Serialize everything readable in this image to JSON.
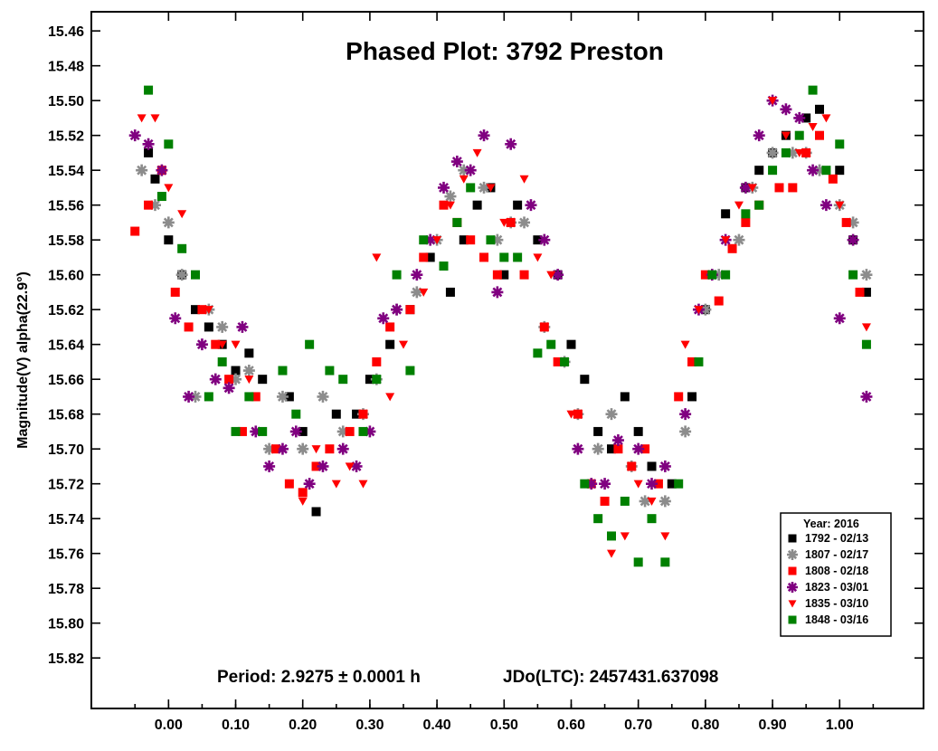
{
  "chart_data": {
    "type": "scatter",
    "title": "Phased Plot: 3792 Preston",
    "xlabel": "",
    "ylabel": "Magnitude(V) alpha(22.9°)",
    "xlim": [
      -0.115,
      1.125
    ],
    "ylim": [
      15.449,
      15.849
    ],
    "y_inverted": true,
    "x_ticks": [
      0.0,
      0.1,
      0.2,
      0.3,
      0.4,
      0.5,
      0.6,
      0.7,
      0.8,
      0.9,
      1.0
    ],
    "x_tick_labels": [
      "0.00",
      "0.10",
      "0.20",
      "0.30",
      "0.40",
      "0.50",
      "0.60",
      "0.70",
      "0.80",
      "0.90",
      "1.00"
    ],
    "y_ticks": [
      15.46,
      15.48,
      15.5,
      15.52,
      15.54,
      15.56,
      15.58,
      15.6,
      15.62,
      15.64,
      15.66,
      15.68,
      15.7,
      15.72,
      15.74,
      15.76,
      15.78,
      15.8,
      15.82
    ],
    "y_tick_labels": [
      "15.46",
      "15.48",
      "15.50",
      "15.52",
      "15.54",
      "15.56",
      "15.58",
      "15.60",
      "15.62",
      "15.64",
      "15.66",
      "15.68",
      "15.70",
      "15.72",
      "15.74",
      "15.76",
      "15.78",
      "15.80",
      "15.82"
    ],
    "grid": false,
    "legend_position": "bottom-right",
    "legend_title": "Year: 2016",
    "annotations": {
      "period": "Period: 2.9275 ± 0.0001 h",
      "epoch": "JDo(LTC): 2457431.637098"
    },
    "series": [
      {
        "name": "1792 - 02/13",
        "marker": "square",
        "color": "#000000",
        "x": [
          -0.03,
          -0.02,
          0.0,
          0.02,
          0.04,
          0.06,
          0.08,
          0.1,
          0.12,
          0.14,
          0.18,
          0.2,
          0.22,
          0.25,
          0.28,
          0.3,
          0.33,
          0.36,
          0.39,
          0.42,
          0.44,
          0.46,
          0.48,
          0.5,
          0.52,
          0.55,
          0.58,
          0.6,
          0.62,
          0.64,
          0.66,
          0.68,
          0.7,
          0.72,
          0.75,
          0.78,
          0.8,
          0.83,
          0.86,
          0.88,
          0.9,
          0.92,
          0.95,
          0.97,
          1.0,
          1.02,
          1.04
        ],
        "y": [
          15.53,
          15.545,
          15.58,
          15.6,
          15.62,
          15.63,
          15.64,
          15.655,
          15.645,
          15.66,
          15.67,
          15.69,
          15.736,
          15.68,
          15.68,
          15.66,
          15.64,
          15.62,
          15.59,
          15.61,
          15.58,
          15.56,
          15.55,
          15.6,
          15.56,
          15.58,
          15.6,
          15.64,
          15.66,
          15.69,
          15.7,
          15.67,
          15.69,
          15.71,
          15.72,
          15.67,
          15.62,
          15.565,
          15.55,
          15.54,
          15.53,
          15.52,
          15.51,
          15.505,
          15.54,
          15.58,
          15.61
        ]
      },
      {
        "name": "1807 - 02/17",
        "marker": "asterisk",
        "color": "#8c8c8c",
        "x": [
          -0.04,
          -0.02,
          0.0,
          0.02,
          0.04,
          0.06,
          0.08,
          0.1,
          0.12,
          0.15,
          0.17,
          0.2,
          0.23,
          0.26,
          0.29,
          0.31,
          0.34,
          0.37,
          0.4,
          0.42,
          0.44,
          0.47,
          0.49,
          0.51,
          0.53,
          0.56,
          0.59,
          0.61,
          0.64,
          0.66,
          0.69,
          0.71,
          0.74,
          0.77,
          0.8,
          0.82,
          0.85,
          0.87,
          0.9,
          0.93,
          0.95,
          0.97,
          1.0,
          1.02,
          1.04
        ],
        "y": [
          15.54,
          15.56,
          15.57,
          15.6,
          15.67,
          15.62,
          15.63,
          15.66,
          15.655,
          15.7,
          15.67,
          15.7,
          15.67,
          15.69,
          15.68,
          15.66,
          15.62,
          15.61,
          15.58,
          15.555,
          15.54,
          15.55,
          15.58,
          15.57,
          15.57,
          15.63,
          15.65,
          15.68,
          15.7,
          15.68,
          15.71,
          15.73,
          15.73,
          15.69,
          15.62,
          15.6,
          15.58,
          15.55,
          15.53,
          15.53,
          15.53,
          15.54,
          15.56,
          15.57,
          15.6
        ]
      },
      {
        "name": "1808 - 02/18",
        "marker": "square",
        "color": "#ff0000",
        "x": [
          -0.05,
          -0.03,
          -0.01,
          0.01,
          0.03,
          0.05,
          0.07,
          0.09,
          0.11,
          0.13,
          0.16,
          0.18,
          0.2,
          0.22,
          0.24,
          0.27,
          0.29,
          0.31,
          0.33,
          0.36,
          0.38,
          0.41,
          0.43,
          0.45,
          0.47,
          0.49,
          0.51,
          0.53,
          0.56,
          0.58,
          0.61,
          0.63,
          0.65,
          0.67,
          0.69,
          0.71,
          0.73,
          0.76,
          0.78,
          0.8,
          0.82,
          0.84,
          0.86,
          0.88,
          0.91,
          0.93,
          0.95,
          0.97,
          0.99,
          1.01,
          1.03
        ],
        "y": [
          15.575,
          15.56,
          15.54,
          15.61,
          15.63,
          15.62,
          15.64,
          15.66,
          15.69,
          15.67,
          15.7,
          15.72,
          15.725,
          15.71,
          15.7,
          15.69,
          15.68,
          15.65,
          15.63,
          15.62,
          15.59,
          15.56,
          15.57,
          15.58,
          15.59,
          15.6,
          15.57,
          15.6,
          15.63,
          15.65,
          15.68,
          15.72,
          15.73,
          15.7,
          15.71,
          15.7,
          15.72,
          15.67,
          15.65,
          15.6,
          15.615,
          15.585,
          15.57,
          15.56,
          15.55,
          15.55,
          15.53,
          15.52,
          15.545,
          15.57,
          15.61
        ]
      },
      {
        "name": "1823 - 03/01",
        "marker": "asterisk",
        "color": "#800080",
        "x": [
          -0.05,
          -0.03,
          -0.01,
          0.01,
          0.03,
          0.05,
          0.07,
          0.09,
          0.11,
          0.13,
          0.15,
          0.17,
          0.19,
          0.21,
          0.23,
          0.26,
          0.28,
          0.3,
          0.32,
          0.34,
          0.37,
          0.39,
          0.41,
          0.43,
          0.45,
          0.47,
          0.49,
          0.51,
          0.54,
          0.56,
          0.58,
          0.61,
          0.63,
          0.65,
          0.67,
          0.7,
          0.72,
          0.74,
          0.77,
          0.79,
          0.81,
          0.83,
          0.86,
          0.88,
          0.9,
          0.92,
          0.94,
          0.96,
          0.98,
          1.0,
          1.02,
          1.04
        ],
        "y": [
          15.52,
          15.525,
          15.54,
          15.625,
          15.67,
          15.64,
          15.66,
          15.665,
          15.63,
          15.69,
          15.71,
          15.7,
          15.69,
          15.72,
          15.71,
          15.7,
          15.71,
          15.69,
          15.625,
          15.62,
          15.6,
          15.58,
          15.55,
          15.535,
          15.54,
          15.52,
          15.61,
          15.525,
          15.56,
          15.58,
          15.6,
          15.7,
          15.72,
          15.72,
          15.695,
          15.7,
          15.72,
          15.71,
          15.68,
          15.62,
          15.6,
          15.58,
          15.55,
          15.52,
          15.5,
          15.505,
          15.51,
          15.54,
          15.56,
          15.625,
          15.58,
          15.67
        ]
      },
      {
        "name": "1835 - 03/10",
        "marker": "triangle-down",
        "color": "#ff0000",
        "x": [
          -0.04,
          -0.02,
          0.0,
          0.02,
          0.04,
          0.06,
          0.08,
          0.1,
          0.12,
          0.14,
          0.16,
          0.18,
          0.2,
          0.22,
          0.25,
          0.27,
          0.29,
          0.31,
          0.33,
          0.35,
          0.38,
          0.4,
          0.42,
          0.44,
          0.46,
          0.48,
          0.5,
          0.53,
          0.55,
          0.57,
          0.6,
          0.62,
          0.64,
          0.66,
          0.68,
          0.7,
          0.72,
          0.74,
          0.77,
          0.79,
          0.81,
          0.83,
          0.85,
          0.87,
          0.9,
          0.92,
          0.94,
          0.96,
          0.98,
          1.0,
          1.02,
          1.04
        ],
        "y": [
          15.51,
          15.51,
          15.55,
          15.565,
          15.6,
          15.62,
          15.64,
          15.64,
          15.66,
          15.69,
          15.7,
          15.72,
          15.73,
          15.7,
          15.72,
          15.71,
          15.72,
          15.59,
          15.67,
          15.64,
          15.61,
          15.58,
          15.56,
          15.545,
          15.53,
          15.55,
          15.57,
          15.545,
          15.59,
          15.6,
          15.68,
          15.72,
          15.74,
          15.76,
          15.75,
          15.72,
          15.73,
          15.75,
          15.64,
          15.62,
          15.6,
          15.58,
          15.56,
          15.55,
          15.5,
          15.52,
          15.53,
          15.515,
          15.51,
          15.56,
          15.6,
          15.63
        ]
      },
      {
        "name": "1848 - 03/16",
        "marker": "square",
        "color": "#008000",
        "x": [
          -0.03,
          -0.01,
          0.0,
          0.02,
          0.04,
          0.06,
          0.08,
          0.1,
          0.12,
          0.14,
          0.17,
          0.19,
          0.21,
          0.24,
          0.26,
          0.29,
          0.31,
          0.34,
          0.36,
          0.38,
          0.41,
          0.43,
          0.45,
          0.48,
          0.5,
          0.52,
          0.55,
          0.57,
          0.59,
          0.62,
          0.64,
          0.66,
          0.68,
          0.7,
          0.72,
          0.74,
          0.76,
          0.79,
          0.81,
          0.83,
          0.86,
          0.88,
          0.9,
          0.92,
          0.94,
          0.96,
          0.98,
          1.0,
          1.02,
          1.04
        ],
        "y": [
          15.494,
          15.555,
          15.525,
          15.585,
          15.6,
          15.67,
          15.65,
          15.69,
          15.67,
          15.69,
          15.655,
          15.68,
          15.64,
          15.655,
          15.66,
          15.69,
          15.66,
          15.6,
          15.655,
          15.58,
          15.595,
          15.57,
          15.55,
          15.58,
          15.59,
          15.59,
          15.645,
          15.64,
          15.65,
          15.72,
          15.74,
          15.75,
          15.73,
          15.765,
          15.74,
          15.765,
          15.72,
          15.65,
          15.6,
          15.6,
          15.565,
          15.56,
          15.54,
          15.53,
          15.52,
          15.494,
          15.54,
          15.525,
          15.6,
          15.64
        ]
      }
    ]
  }
}
